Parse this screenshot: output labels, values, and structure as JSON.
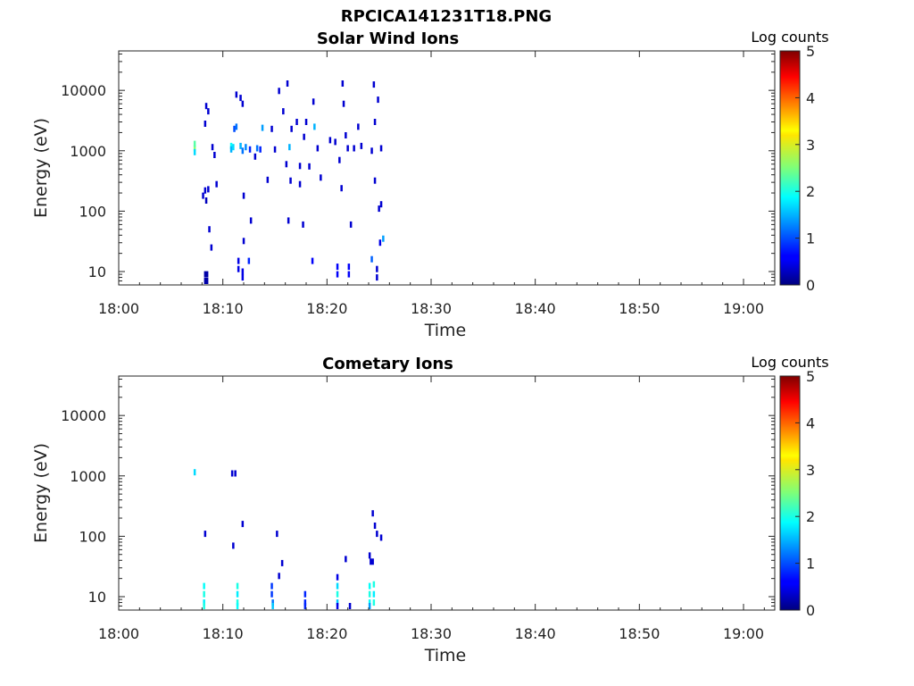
{
  "figure_title": "RPCICA141231T18.PNG",
  "chart_data": [
    {
      "type": "heatmap",
      "title": "Solar Wind Ions",
      "xlabel": "Time",
      "ylabel": "Energy (eV)",
      "x_range_minutes": [
        0,
        63
      ],
      "x_ticks": [
        {
          "minute": 0,
          "label": "18:00"
        },
        {
          "minute": 10,
          "label": "18:10"
        },
        {
          "minute": 20,
          "label": "18:20"
        },
        {
          "minute": 30,
          "label": "18:30"
        },
        {
          "minute": 40,
          "label": "18:40"
        },
        {
          "minute": 50,
          "label": "18:50"
        },
        {
          "minute": 60,
          "label": "19:00"
        }
      ],
      "y_scale": "log",
      "y_range_eV": [
        6,
        45000
      ],
      "y_ticks": [
        {
          "value": 10,
          "label": "10"
        },
        {
          "value": 100,
          "label": "100"
        },
        {
          "value": 1000,
          "label": "1000"
        },
        {
          "value": 10000,
          "label": "10000"
        }
      ],
      "colorbar": {
        "title": "Log counts",
        "range": [
          0,
          5
        ],
        "ticks": [
          "0",
          "1",
          "2",
          "3",
          "4",
          "5"
        ],
        "colormap": "jet"
      },
      "cells": [
        [
          7.3,
          1100,
          2.6
        ],
        [
          7.3,
          1300,
          2.3
        ],
        [
          7.3,
          950,
          1.7
        ],
        [
          8.3,
          9,
          0.2
        ],
        [
          8.3,
          7,
          0.2
        ],
        [
          8.5,
          9,
          0.2
        ],
        [
          8.5,
          7,
          0.2
        ],
        [
          8.1,
          180,
          0.4
        ],
        [
          8.3,
          220,
          0.4
        ],
        [
          8.6,
          230,
          0.4
        ],
        [
          8.4,
          150,
          0.3
        ],
        [
          8.9,
          25,
          0.4
        ],
        [
          8.7,
          50,
          0.4
        ],
        [
          8.4,
          5500,
          0.4
        ],
        [
          8.6,
          4500,
          0.4
        ],
        [
          8.3,
          2800,
          0.4
        ],
        [
          9.4,
          280,
          0.4
        ],
        [
          9.0,
          1150,
          0.4
        ],
        [
          9.2,
          850,
          0.4
        ],
        [
          10.8,
          1200,
          1.9
        ],
        [
          10.8,
          1050,
          1.5
        ],
        [
          11.0,
          1150,
          1.7
        ],
        [
          11.3,
          2500,
          1.2
        ],
        [
          11.1,
          2300,
          1.0
        ],
        [
          11.7,
          1200,
          1.5
        ],
        [
          11.9,
          1000,
          1.2
        ],
        [
          12.2,
          1150,
          1.3
        ],
        [
          12.6,
          1050,
          0.8
        ],
        [
          11.3,
          8500,
          0.4
        ],
        [
          11.7,
          7500,
          0.4
        ],
        [
          11.9,
          6000,
          0.4
        ],
        [
          11.5,
          15,
          0.5
        ],
        [
          11.5,
          11,
          0.5
        ],
        [
          11.9,
          8,
          0.5
        ],
        [
          11.9,
          10,
          0.5
        ],
        [
          12.0,
          32,
          0.4
        ],
        [
          12.5,
          15,
          0.8
        ],
        [
          12.0,
          180,
          0.4
        ],
        [
          12.7,
          70,
          0.4
        ],
        [
          13.3,
          1100,
          1.2
        ],
        [
          13.6,
          1050,
          0.8
        ],
        [
          13.1,
          800,
          0.4
        ],
        [
          13.8,
          2400,
          1.4
        ],
        [
          14.3,
          330,
          0.4
        ],
        [
          14.7,
          2300,
          0.4
        ],
        [
          15.0,
          1050,
          0.4
        ],
        [
          15.4,
          9800,
          0.4
        ],
        [
          15.8,
          4500,
          0.4
        ],
        [
          16.2,
          13000,
          0.4
        ],
        [
          16.6,
          2300,
          0.4
        ],
        [
          16.4,
          1150,
          1.5
        ],
        [
          16.1,
          600,
          0.4
        ],
        [
          16.5,
          320,
          0.4
        ],
        [
          16.3,
          70,
          0.4
        ],
        [
          17.1,
          3000,
          0.4
        ],
        [
          17.4,
          280,
          0.4
        ],
        [
          17.7,
          60,
          0.4
        ],
        [
          17.4,
          560,
          0.4
        ],
        [
          17.8,
          1700,
          0.4
        ],
        [
          18.0,
          3000,
          0.4
        ],
        [
          18.3,
          550,
          0.4
        ],
        [
          18.6,
          15,
          0.6
        ],
        [
          18.8,
          2500,
          1.5
        ],
        [
          18.7,
          6500,
          0.4
        ],
        [
          19.1,
          1100,
          0.4
        ],
        [
          19.4,
          360,
          0.4
        ],
        [
          20.3,
          1500,
          0.4
        ],
        [
          20.8,
          1400,
          0.4
        ],
        [
          21.2,
          700,
          0.4
        ],
        [
          21.0,
          12,
          0.6
        ],
        [
          21.0,
          9,
          0.6
        ],
        [
          21.5,
          13000,
          0.4
        ],
        [
          21.6,
          6000,
          0.4
        ],
        [
          21.4,
          240,
          0.4
        ],
        [
          21.8,
          1800,
          0.4
        ],
        [
          22.0,
          1100,
          0.4
        ],
        [
          22.1,
          12,
          0.6
        ],
        [
          22.1,
          9,
          0.6
        ],
        [
          22.3,
          60,
          0.4
        ],
        [
          22.6,
          1100,
          0.4
        ],
        [
          23.0,
          2500,
          0.4
        ],
        [
          23.3,
          1200,
          0.4
        ],
        [
          24.3,
          1000,
          0.4
        ],
        [
          24.5,
          12500,
          0.4
        ],
        [
          24.6,
          3000,
          0.4
        ],
        [
          24.9,
          7000,
          0.4
        ],
        [
          24.3,
          16,
          1.1
        ],
        [
          24.8,
          11,
          0.4
        ],
        [
          24.8,
          8,
          0.4
        ],
        [
          24.6,
          320,
          0.4
        ],
        [
          25.2,
          1100,
          0.4
        ],
        [
          25.0,
          110,
          0.4
        ],
        [
          25.1,
          30,
          0.5
        ],
        [
          25.4,
          35,
          1.4
        ],
        [
          25.2,
          130,
          0.4
        ]
      ]
    },
    {
      "type": "heatmap",
      "title": "Cometary Ions",
      "xlabel": "Time",
      "ylabel": "Energy (eV)",
      "x_range_minutes": [
        0,
        63
      ],
      "x_ticks": [
        {
          "minute": 0,
          "label": "18:00"
        },
        {
          "minute": 10,
          "label": "18:10"
        },
        {
          "minute": 20,
          "label": "18:20"
        },
        {
          "minute": 30,
          "label": "18:30"
        },
        {
          "minute": 40,
          "label": "18:40"
        },
        {
          "minute": 50,
          "label": "18:50"
        },
        {
          "minute": 60,
          "label": "19:00"
        }
      ],
      "y_scale": "log",
      "y_range_eV": [
        6,
        45000
      ],
      "y_ticks": [
        {
          "value": 10,
          "label": "10"
        },
        {
          "value": 100,
          "label": "100"
        },
        {
          "value": 1000,
          "label": "1000"
        },
        {
          "value": 10000,
          "label": "10000"
        }
      ],
      "colorbar": {
        "title": "Log counts",
        "range": [
          0,
          5
        ],
        "ticks": [
          "0",
          "1",
          "2",
          "3",
          "4",
          "5"
        ],
        "colormap": "jet"
      },
      "cells": [
        [
          7.3,
          1150,
          1.7
        ],
        [
          8.2,
          15,
          1.9
        ],
        [
          8.2,
          11,
          2.0
        ],
        [
          8.2,
          8,
          1.8
        ],
        [
          8.2,
          7,
          2.0
        ],
        [
          8.3,
          110,
          0.4
        ],
        [
          10.9,
          1100,
          0.4
        ],
        [
          11.2,
          1100,
          0.4
        ],
        [
          11.0,
          70,
          0.4
        ],
        [
          11.4,
          15,
          2.0
        ],
        [
          11.4,
          11,
          1.8
        ],
        [
          11.4,
          8,
          2.0
        ],
        [
          11.4,
          7,
          1.9
        ],
        [
          11.9,
          160,
          0.4
        ],
        [
          14.7,
          15,
          0.9
        ],
        [
          14.7,
          11,
          0.9
        ],
        [
          14.8,
          8,
          1.2
        ],
        [
          14.8,
          7,
          1.6
        ],
        [
          15.2,
          110,
          0.4
        ],
        [
          15.4,
          22,
          0.4
        ],
        [
          15.7,
          36,
          0.4
        ],
        [
          17.9,
          11,
          0.8
        ],
        [
          17.9,
          8,
          0.8
        ],
        [
          17.9,
          7,
          0.8
        ],
        [
          21.0,
          21,
          0.5
        ],
        [
          21.0,
          15,
          1.7
        ],
        [
          21.0,
          11,
          2.0
        ],
        [
          21.0,
          8,
          1.6
        ],
        [
          21.0,
          7,
          0.5
        ],
        [
          21.8,
          42,
          0.4
        ],
        [
          22.2,
          7,
          0.4
        ],
        [
          24.1,
          48,
          0.4
        ],
        [
          24.2,
          38,
          0.4
        ],
        [
          24.4,
          38,
          0.4
        ],
        [
          24.1,
          15,
          1.9
        ],
        [
          24.1,
          11,
          2.0
        ],
        [
          24.1,
          8,
          1.9
        ],
        [
          24.1,
          7,
          1.4
        ],
        [
          24.5,
          16,
          2.0
        ],
        [
          24.5,
          11,
          1.8
        ],
        [
          24.5,
          8,
          2.0
        ],
        [
          24.4,
          240,
          0.4
        ],
        [
          24.6,
          150,
          0.4
        ],
        [
          24.8,
          110,
          0.4
        ],
        [
          25.2,
          95,
          0.4
        ]
      ]
    }
  ]
}
